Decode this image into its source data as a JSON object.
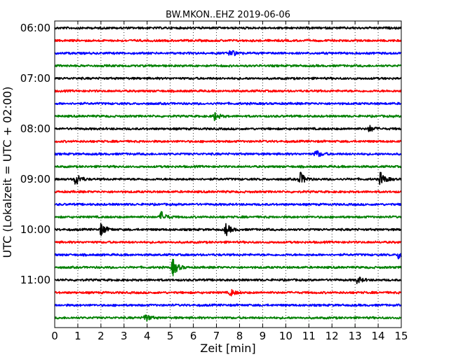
{
  "chart_data": {
    "type": "line",
    "title": "BW.MKON..EHZ 2019-06-06",
    "xlabel": "Zeit  [min]",
    "ylabel": "UTC (Lokalzeit = UTC + 02:00)",
    "xlim": [
      0,
      15
    ],
    "x_ticks": [
      "0",
      "1",
      "2",
      "3",
      "4",
      "5",
      "6",
      "7",
      "8",
      "9",
      "10",
      "11",
      "12",
      "13",
      "14",
      "15"
    ],
    "y_ticks": [
      "06:00",
      "07:00",
      "08:00",
      "09:00",
      "10:00",
      "11:00"
    ],
    "minutes_per_trace": 15,
    "grid": true,
    "trace_colors": [
      "#000000",
      "#ff0000",
      "#0000ff",
      "#008000"
    ],
    "traces": [
      {
        "start": "06:00",
        "events": []
      },
      {
        "start": "06:15",
        "events": []
      },
      {
        "start": "06:30",
        "events": [
          {
            "minute": 7.6,
            "amplitude": 0.6
          }
        ]
      },
      {
        "start": "06:45",
        "events": []
      },
      {
        "start": "07:00",
        "events": []
      },
      {
        "start": "07:15",
        "events": []
      },
      {
        "start": "07:30",
        "events": []
      },
      {
        "start": "07:45",
        "events": [
          {
            "minute": 6.9,
            "amplitude": 0.6
          }
        ]
      },
      {
        "start": "08:00",
        "events": [
          {
            "minute": 13.6,
            "amplitude": 0.5
          }
        ]
      },
      {
        "start": "08:15",
        "events": []
      },
      {
        "start": "08:30",
        "events": [
          {
            "minute": 11.3,
            "amplitude": 0.6
          }
        ]
      },
      {
        "start": "08:45",
        "events": []
      },
      {
        "start": "09:00",
        "events": [
          {
            "minute": 0.9,
            "amplitude": 1.0
          },
          {
            "minute": 10.6,
            "amplitude": 1.1
          },
          {
            "minute": 14.1,
            "amplitude": 1.0
          }
        ]
      },
      {
        "start": "09:15",
        "events": []
      },
      {
        "start": "09:30",
        "events": []
      },
      {
        "start": "09:45",
        "events": [
          {
            "minute": 4.6,
            "amplitude": 0.8
          }
        ]
      },
      {
        "start": "10:00",
        "events": [
          {
            "minute": 2.0,
            "amplitude": 0.9
          },
          {
            "minute": 7.4,
            "amplitude": 0.9
          }
        ]
      },
      {
        "start": "10:15",
        "events": []
      },
      {
        "start": "10:30",
        "events": [
          {
            "minute": 14.9,
            "amplitude": 0.8
          }
        ]
      },
      {
        "start": "10:45",
        "events": [
          {
            "minute": 5.1,
            "amplitude": 1.3
          }
        ]
      },
      {
        "start": "11:00",
        "events": [
          {
            "minute": 13.1,
            "amplitude": 0.5
          }
        ]
      },
      {
        "start": "11:15",
        "events": [
          {
            "minute": 7.6,
            "amplitude": 0.5
          }
        ]
      },
      {
        "start": "11:30",
        "events": []
      },
      {
        "start": "11:45",
        "events": [
          {
            "minute": 3.9,
            "amplitude": 0.6
          }
        ]
      }
    ]
  }
}
